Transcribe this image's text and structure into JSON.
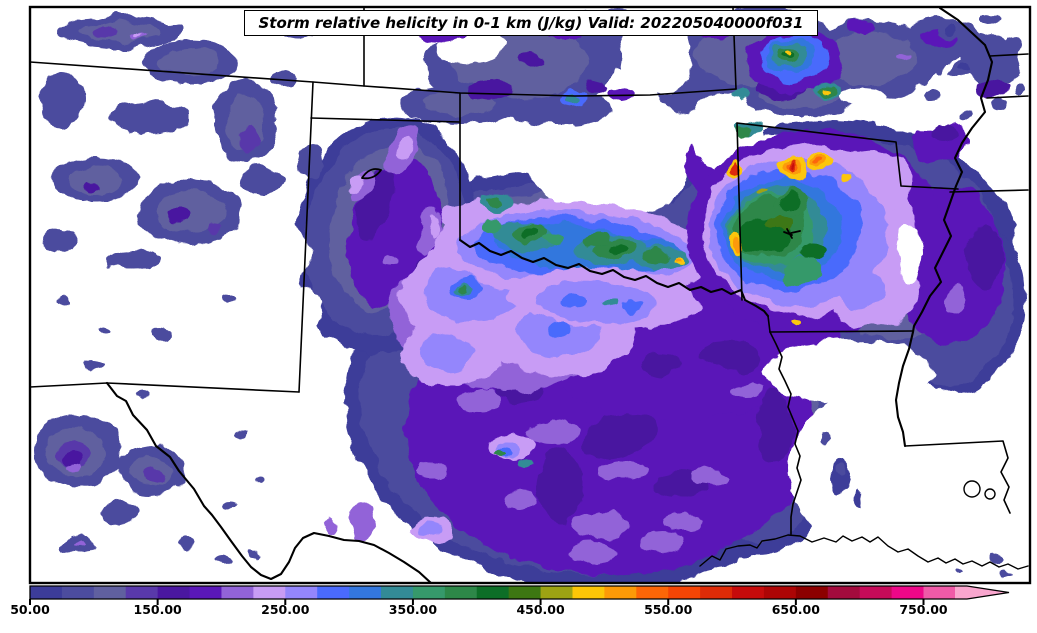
{
  "title": {
    "text": "Storm relative helicity in 0-1 km (J/kg) Valid: 202205040000f031"
  },
  "colorbar": {
    "tick_labels": [
      "50.00",
      "150.00",
      "250.00",
      "350.00",
      "450.00",
      "550.00",
      "650.00",
      "750.00"
    ],
    "tick_values": [
      50,
      150,
      250,
      350,
      450,
      550,
      650,
      750
    ],
    "value_min": 50,
    "value_max": 800,
    "segment_step": 25,
    "segment_values": [
      50,
      75,
      100,
      125,
      150,
      175,
      200,
      225,
      250,
      275,
      300,
      325,
      350,
      375,
      400,
      425,
      450,
      475,
      500,
      525,
      550,
      575,
      600,
      625,
      650,
      675,
      700,
      725,
      750,
      775
    ],
    "segment_colors": [
      "#3c3c99",
      "#4c4c9e",
      "#60609f",
      "#5939aa",
      "#4a17a0",
      "#5a17b8",
      "#9263d8",
      "#c89cf5",
      "#9486fc",
      "#4a6afc",
      "#3377dd",
      "#338b96",
      "#36996b",
      "#2d8748",
      "#0d6e27",
      "#3d7712",
      "#9da313",
      "#fcc607",
      "#fc9a07",
      "#fc6607",
      "#f54505",
      "#dd2b07",
      "#c60b0b",
      "#ad0505",
      "#8c0000",
      "#a30b3d",
      "#c60b59",
      "#ed0788",
      "#ef5aa7",
      "#f9a6ce"
    ],
    "arrow_color": "#f9a6ce",
    "outline_color": "#000000"
  },
  "map": {
    "background_color": "#ffffff",
    "border_color": "#000000"
  }
}
